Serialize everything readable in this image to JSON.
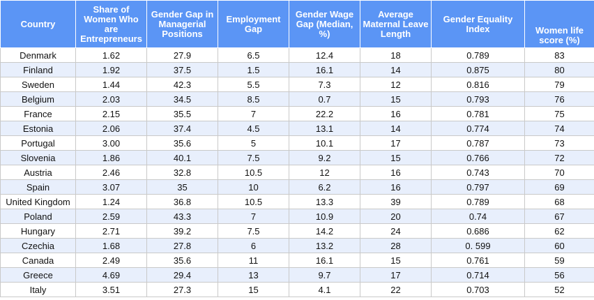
{
  "headers": [
    "Country",
    "Share of Women Who are Entrepreneurs",
    "Gender Gap in Managerial Positions",
    "Employment Gap",
    "Gender Wage Gap (Median, %)",
    "Average Maternal Leave Length",
    "Gender Equality Index",
    "Women life score (%)"
  ],
  "rows": [
    [
      "Denmark",
      "1.62",
      "27.9",
      "6.5",
      "12.4",
      "18",
      "0.789",
      "83"
    ],
    [
      "Finland",
      "1.92",
      "37.5",
      "1.5",
      "16.1",
      "14",
      "0.875",
      "80"
    ],
    [
      "Sweden",
      "1.44",
      "42.3",
      "5.5",
      "7.3",
      "12",
      "0.816",
      "79"
    ],
    [
      "Belgium",
      "2.03",
      "34.5",
      "8.5",
      "0.7",
      "15",
      "0.793",
      "76"
    ],
    [
      "France",
      "2.15",
      "35.5",
      "7",
      "22.2",
      "16",
      "0.781",
      "75"
    ],
    [
      "Estonia",
      "2.06",
      "37.4",
      "4.5",
      "13.1",
      "14",
      "0.774",
      "74"
    ],
    [
      "Portugal",
      "3.00",
      "35.6",
      "5",
      "10.1",
      "17",
      "0.787",
      "73"
    ],
    [
      "Slovenia",
      "1.86",
      "40.1",
      "7.5",
      "9.2",
      "15",
      "0.766",
      "72"
    ],
    [
      "Austria",
      "2.46",
      "32.8",
      "10.5",
      "12",
      "16",
      "0.743",
      "70"
    ],
    [
      "Spain",
      "3.07",
      "35",
      "10",
      "6.2",
      "16",
      "0.797",
      "69"
    ],
    [
      "United Kingdom",
      "1.24",
      "36.8",
      "10.5",
      "13.3",
      "39",
      "0.789",
      "68"
    ],
    [
      "Poland",
      "2.59",
      "43.3",
      "7",
      "10.9",
      "20",
      "0.74",
      "67"
    ],
    [
      "Hungary",
      "2.71",
      "39.2",
      "7.5",
      "14.2",
      "24",
      "0.686",
      "62"
    ],
    [
      "Czechia",
      "1.68",
      "27.8",
      "6",
      "13.2",
      "28",
      "0. 599",
      "60"
    ],
    [
      "Canada",
      "2.49",
      "35.6",
      "11",
      "16.1",
      "15",
      "0.761",
      "59"
    ],
    [
      "Greece",
      "4.69",
      "29.4",
      "13",
      "9.7",
      "17",
      "0.714",
      "56"
    ],
    [
      "Italy",
      "3.51",
      "27.3",
      "15",
      "4.1",
      "22",
      "0.703",
      "52"
    ]
  ],
  "colors": {
    "header_bg": "#5b95f5",
    "header_text": "#ffffff",
    "row_alt_bg": "#e8effc",
    "row_bg": "#ffffff",
    "grid": "#c9c9c9"
  }
}
